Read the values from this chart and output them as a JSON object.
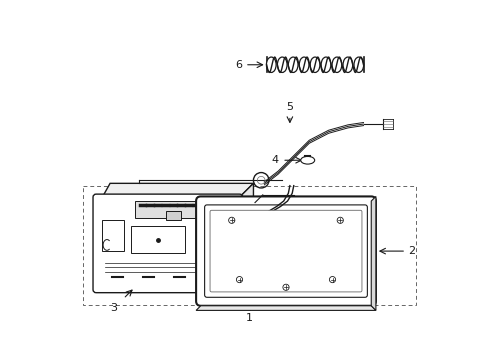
{
  "background_color": "#ffffff",
  "fig_width": 4.9,
  "fig_height": 3.6,
  "dpi": 100,
  "line_color": "#1a1a1a",
  "gray": "#666666",
  "light_gray": "#cccccc"
}
